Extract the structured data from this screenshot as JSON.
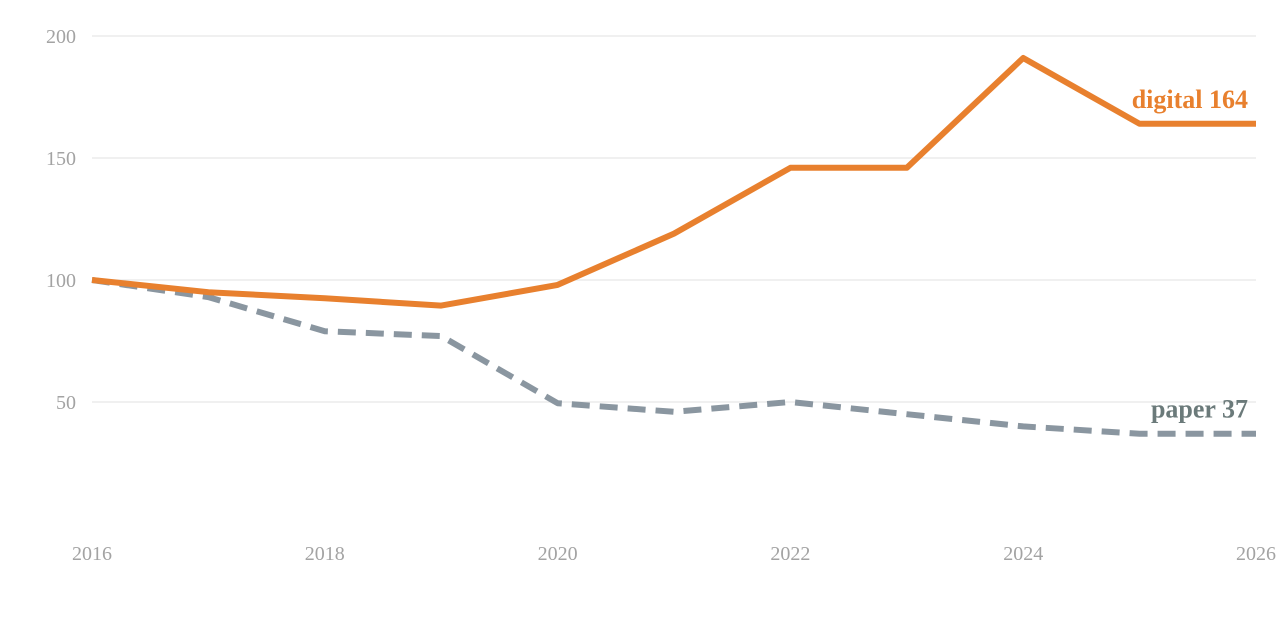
{
  "chart_data": {
    "type": "line",
    "x": [
      2016,
      2017,
      2018,
      2019,
      2020,
      2021,
      2022,
      2023,
      2024,
      2025,
      2026
    ],
    "series": [
      {
        "name": "digital",
        "end_label": "digital 164",
        "color": "#e8802e",
        "style": "solid",
        "values": [
          100,
          95,
          92.5,
          89.5,
          98,
          119,
          146,
          146,
          191,
          164,
          164
        ]
      },
      {
        "name": "paper",
        "end_label": "paper 37",
        "color": "#8a96a0",
        "label_color": "#6b7a7a",
        "style": "dashed",
        "values": [
          100,
          93,
          79,
          77,
          49.5,
          46,
          50,
          45,
          40,
          37,
          37
        ]
      }
    ],
    "xticks": [
      2016,
      2018,
      2020,
      2022,
      2024,
      2026
    ],
    "yticks": [
      50,
      100,
      150,
      200
    ],
    "xlim": [
      2016,
      2026
    ],
    "ylim": [
      0,
      200
    ],
    "grid": "horizontal",
    "title": "",
    "xlabel": "",
    "ylabel": ""
  }
}
